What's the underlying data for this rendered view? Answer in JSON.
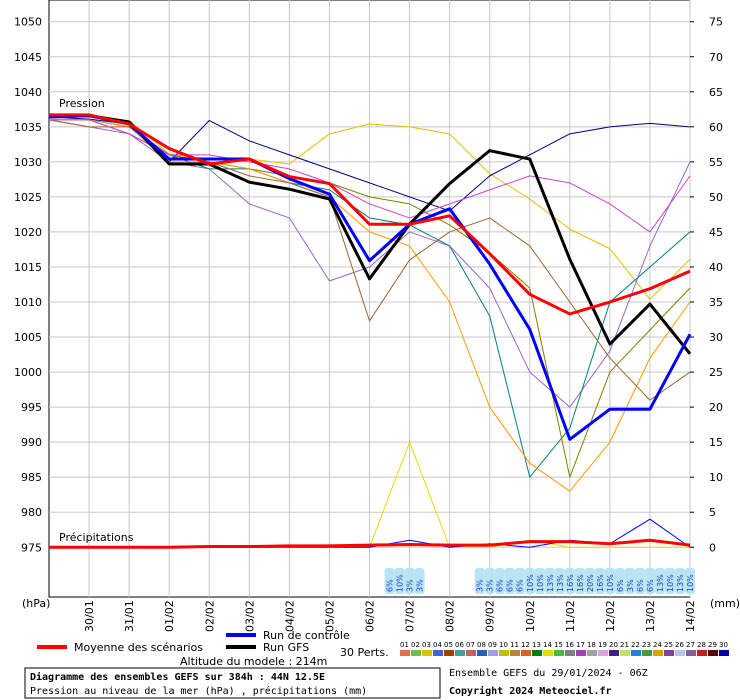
{
  "chart_data": {
    "type": "line",
    "x": [
      0,
      24,
      48,
      72,
      96,
      120,
      144,
      168,
      192,
      216,
      240,
      264,
      288,
      312,
      336,
      360,
      384
    ],
    "xlim": [
      0,
      384
    ],
    "xticks": [
      {
        "value": 24,
        "label": "30/01"
      },
      {
        "value": 48,
        "label": "31/01"
      },
      {
        "value": 72,
        "label": "01/02"
      },
      {
        "value": 96,
        "label": "02/02"
      },
      {
        "value": 120,
        "label": "03/02"
      },
      {
        "value": 144,
        "label": "04/02"
      },
      {
        "value": 168,
        "label": "05/02"
      },
      {
        "value": 192,
        "label": "06/02"
      },
      {
        "value": 216,
        "label": "07/02"
      },
      {
        "value": 240,
        "label": "08/02"
      },
      {
        "value": 264,
        "label": "09/02"
      },
      {
        "value": 288,
        "label": "10/02"
      },
      {
        "value": 312,
        "label": "11/02"
      },
      {
        "value": 336,
        "label": "12/02"
      },
      {
        "value": 360,
        "label": "13/02"
      },
      {
        "value": 384,
        "label": "14/02"
      }
    ],
    "ylim": [
      967.9,
      1053.1
    ],
    "yticks": [
      975,
      980,
      985,
      990,
      995,
      1000,
      1005,
      1010,
      1015,
      1020,
      1025,
      1030,
      1035,
      1040,
      1045,
      1050
    ],
    "y2lim": [
      -7.1,
      78.1
    ],
    "y2ticks": [
      0,
      5,
      10,
      15,
      20,
      25,
      30,
      35,
      40,
      45,
      50,
      55,
      60,
      65,
      70,
      75
    ],
    "grid": true,
    "y_unit_label": "(hPa)",
    "y2_unit_label": "(mm)",
    "pressure_label": "Pression",
    "precip_label": "Précipitations",
    "series": [
      {
        "color": "#e0c000",
        "values": [
          1036.7,
          1036.4,
          1035.9,
          1031.1,
          1030.4,
          1030.4,
          1029.7,
          1034,
          1035.4,
          1035,
          1034,
          1028.3,
          1024.7,
          1020.4,
          1017.6,
          1010.4,
          1016.1
        ]
      },
      {
        "color": "#000080",
        "values": [
          1036.4,
          1036.1,
          1035.4,
          1030,
          1035.9,
          1033,
          1031,
          1029,
          1027,
          1025,
          1023,
          1028,
          1031,
          1034,
          1035,
          1035.5,
          1035
        ]
      },
      {
        "color": "#9966cc",
        "values": [
          1036,
          1035,
          1034,
          1030,
          1029,
          1024,
          1022,
          1013,
          1015,
          1020,
          1018,
          1012,
          1000,
          995,
          1003,
          1018,
          1030
        ]
      },
      {
        "color": "#008080",
        "values": [
          1036,
          1036,
          1035,
          1031,
          1029,
          1029,
          1027,
          1026,
          1022,
          1021,
          1018,
          1008,
          985,
          992,
          1010,
          1015,
          1020
        ]
      },
      {
        "color": "#808000",
        "values": [
          1036,
          1036,
          1034,
          1031,
          1030,
          1029,
          1028,
          1027,
          1025,
          1024,
          1021,
          1017,
          1012,
          985,
          1000,
          1006,
          1012
        ]
      },
      {
        "color": "#ff9900",
        "values": [
          1036,
          1036,
          1035,
          1030,
          1030,
          1029,
          1027,
          1025,
          1020,
          1018,
          1010,
          995,
          987,
          983,
          990,
          1002,
          1010
        ]
      },
      {
        "color": "#996633",
        "values": [
          1036,
          1035,
          1035,
          1031,
          1030,
          1028,
          1027,
          1025,
          1007.3,
          1016,
          1020,
          1022,
          1018,
          1010,
          1002,
          996,
          1000
        ]
      },
      {
        "color": "#cc44cc",
        "values": [
          1036,
          1036,
          1034,
          1031,
          1031,
          1030,
          1029,
          1027,
          1024,
          1022,
          1024,
          1026,
          1028,
          1027,
          1024,
          1020,
          1028
        ]
      },
      {
        "name": "Run GFS",
        "color": "#000000",
        "values": [
          1036.4,
          1036.6,
          1035.7,
          1029.7,
          1029.7,
          1027.1,
          1026.1,
          1024.7,
          1013.3,
          1021.1,
          1026.9,
          1031.6,
          1030.4,
          1016.1,
          1004,
          1009.7,
          1002.6
        ]
      },
      {
        "name": "Run de contrôle",
        "color": "#0000ff",
        "values": [
          1036.4,
          1036.6,
          1035.4,
          1030.4,
          1030.4,
          1030.4,
          1027.6,
          1025.4,
          1015.9,
          1021.1,
          1023.3,
          1015.4,
          1006.1,
          990.4,
          994.7,
          994.7,
          1005.4
        ]
      },
      {
        "name": "Moyenne des scénarios",
        "color": "#ff0000",
        "values": [
          1036.7,
          1036.7,
          1035.4,
          1031.9,
          1029.7,
          1030.4,
          1027.9,
          1026.9,
          1021.1,
          1021.1,
          1022.3,
          1016.9,
          1011.1,
          1008.3,
          1010,
          1011.9,
          1014.4
        ]
      },
      {
        "axis": "y2",
        "color": "#e0e000",
        "values": [
          0,
          0,
          0,
          0,
          0,
          0,
          0,
          0,
          0,
          15,
          0,
          0,
          1,
          0,
          0,
          0,
          0
        ]
      },
      {
        "axis": "y2",
        "color": "#0000ff",
        "values": [
          0,
          0,
          0,
          0,
          0,
          0,
          0,
          0,
          0,
          1,
          0,
          0.5,
          0,
          1,
          0.5,
          4,
          0
        ]
      },
      {
        "axis": "y2",
        "color": "#ff0000",
        "values": [
          0,
          0,
          0,
          0,
          0.1,
          0.1,
          0.2,
          0.2,
          0.3,
          0.4,
          0.3,
          0.3,
          0.8,
          0.8,
          0.5,
          1,
          0.3
        ]
      }
    ],
    "annotations": [
      {
        "x": 204,
        "label": "6%"
      },
      {
        "x": 210,
        "label": "10%"
      },
      {
        "x": 216,
        "label": "3%"
      },
      {
        "x": 222,
        "label": "3%"
      },
      {
        "x": 258,
        "label": "3%"
      },
      {
        "x": 264,
        "label": "3%"
      },
      {
        "x": 270,
        "label": "6%"
      },
      {
        "x": 276,
        "label": "6%"
      },
      {
        "x": 282,
        "label": "6%"
      },
      {
        "x": 288,
        "label": "10%"
      },
      {
        "x": 294,
        "label": "10%"
      },
      {
        "x": 300,
        "label": "13%"
      },
      {
        "x": 306,
        "label": "13%"
      },
      {
        "x": 312,
        "label": "16%"
      },
      {
        "x": 318,
        "label": "16%"
      },
      {
        "x": 324,
        "label": "20%"
      },
      {
        "x": 330,
        "label": "16%"
      },
      {
        "x": 336,
        "label": "10%"
      },
      {
        "x": 342,
        "label": "6%"
      },
      {
        "x": 348,
        "label": "3%"
      },
      {
        "x": 354,
        "label": "6%"
      },
      {
        "x": 360,
        "label": "6%"
      },
      {
        "x": 366,
        "label": "13%"
      },
      {
        "x": 372,
        "label": "10%"
      },
      {
        "x": 378,
        "label": "13%"
      },
      {
        "x": 384,
        "label": "10%"
      }
    ],
    "perturbations_label": "30 Perts.",
    "perturbation_legend": [
      {
        "label": "01",
        "color": "#e07040"
      },
      {
        "label": "02",
        "color": "#70c040"
      },
      {
        "label": "03",
        "color": "#e0c000"
      },
      {
        "label": "04",
        "color": "#4060e0"
      },
      {
        "label": "05",
        "color": "#a04000"
      },
      {
        "label": "06",
        "color": "#40a0a0"
      },
      {
        "label": "07",
        "color": "#c06060"
      },
      {
        "label": "08",
        "color": "#2060c0"
      },
      {
        "label": "09",
        "color": "#a0a0e0"
      },
      {
        "label": "10",
        "color": "#c0c000"
      },
      {
        "label": "11",
        "color": "#c08040"
      },
      {
        "label": "12",
        "color": "#e06020"
      },
      {
        "label": "13",
        "color": "#008000"
      },
      {
        "label": "14",
        "color": "#e0e000"
      },
      {
        "label": "15",
        "color": "#40c040"
      },
      {
        "label": "16",
        "color": "#808080"
      },
      {
        "label": "17",
        "color": "#a040c0"
      },
      {
        "label": "18",
        "color": "#a0a0a0"
      },
      {
        "label": "19",
        "color": "#e0a0e0"
      },
      {
        "label": "20",
        "color": "#402080"
      },
      {
        "label": "21",
        "color": "#c0e060"
      },
      {
        "label": "22",
        "color": "#2080e0"
      },
      {
        "label": "23",
        "color": "#40a040"
      },
      {
        "label": "24",
        "color": "#e0a000"
      },
      {
        "label": "25",
        "color": "#8040a0"
      },
      {
        "label": "26",
        "color": "#c0c0e0"
      },
      {
        "label": "27",
        "color": "#8060a0"
      },
      {
        "label": "28",
        "color": "#c02020"
      },
      {
        "label": "29",
        "color": "#600000"
      },
      {
        "label": "30",
        "color": "#0000a0"
      }
    ],
    "altitude": "Altitude du modele : 214m",
    "info_title": "Diagramme des ensembles GEFS sur 384h : 44N 12.5E",
    "info_subtitle": "Pression au niveau de la mer (hPa) , précipitations (mm)",
    "run_info": "Ensemble GEFS du 29/01/2024 - 06Z",
    "copyright": "Copyright 2024 Meteociel.fr"
  }
}
